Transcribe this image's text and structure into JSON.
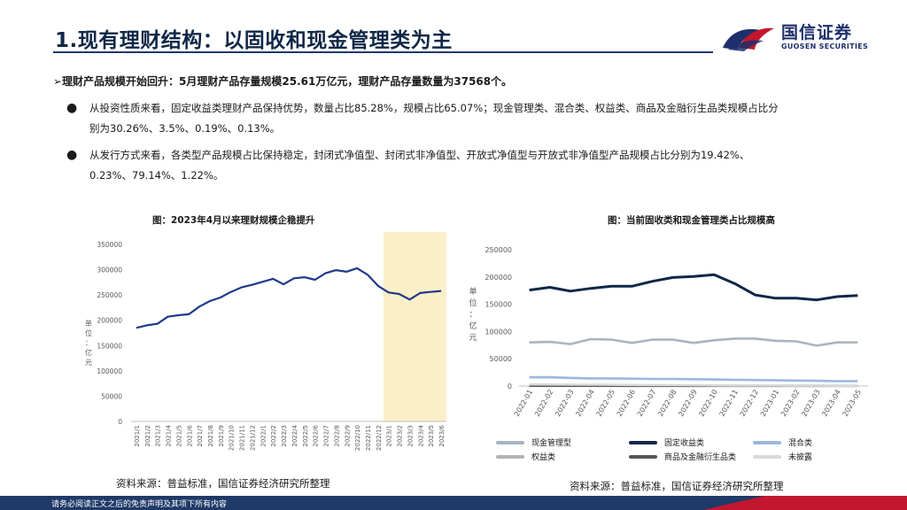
{
  "slide": {
    "title": "1.现有理财结构：以固收和现金管理类为主",
    "logo_cn": "国信证券",
    "logo_en": "GUOSEN SECURITIES",
    "headline": "➢理财产品规模开始回升：5月理财产品存量规模25.61万亿元，理财产品存量数量为37568个。",
    "bullets": [
      {
        "mark": "●",
        "line1": "从投资性质来看，固定收益类理财产品保持优势，数量占比85.28%，规模占比65.07%；现金管理类、混合类、权益类、商品及金融衍生品类规模占比分",
        "line2": "别为30.26%、3.5%、0.19%、0.13%。"
      },
      {
        "mark": "●",
        "line1": "从发行方式来看，各类型产品规模占比保持稳定，封闭式净值型、封闭式非净值型、开放式净值型与开放式非净值型产品规模占比分别为19.42%、",
        "line2": "0.23%、79.14%、1.22%。"
      }
    ],
    "footer": "请务必阅读正文之后的免责声明及其项下所有内容",
    "colors": {
      "navy": "#1f3a68",
      "red": "#c3172f",
      "highlight": "#fbefc8"
    }
  },
  "left_chart": {
    "title": "图：2023年4月以来理财规模企稳提升",
    "source": "资料来源：普益标准，国信证券经济研究所整理",
    "ylabel": "单位：亿元"
  },
  "right_chart": {
    "title": "图：当前固收类和现金管理类占比规模高",
    "source": "资料来源：普益标准，国信证券经济研究所整理",
    "ylabel": "单位：亿元",
    "legend": [
      {
        "name": "现金管理型",
        "color": "#a9b4c2"
      },
      {
        "name": "固定收益类",
        "color": "#0f2747"
      },
      {
        "name": "混合类",
        "color": "#9bb7e0"
      },
      {
        "name": "权益类",
        "color": "#b3b3b3"
      },
      {
        "name": "商品及金融衍生品类",
        "color": "#555555"
      },
      {
        "name": "未披露",
        "color": "#d9d9d9"
      }
    ]
  },
  "chart_data": [
    {
      "type": "line",
      "ylim": [
        0,
        350000
      ],
      "yticks": [
        "0",
        "50000",
        "100000",
        "150000",
        "200000",
        "250000",
        "300000",
        "350000"
      ],
      "x": [
        "2021/1",
        "2021/2",
        "2021/3",
        "2021/4",
        "2021/5",
        "2021/6",
        "2021/7",
        "2021/8",
        "2021/9",
        "2021/10",
        "2021/11",
        "2021/12",
        "2022/1",
        "2022/2",
        "2022/3",
        "2022/4",
        "2022/5",
        "2022/6",
        "2022/7",
        "2022/8",
        "2022/9",
        "2022/10",
        "2022/11",
        "2022/12",
        "2023/1",
        "2023/2",
        "2023/3",
        "2023/4",
        "2023/5",
        "2023/6"
      ],
      "highlight_range": [
        "2023/1",
        "2023/6"
      ],
      "series": [
        {
          "color": "#1f3a8a",
          "values": [
            185000,
            190000,
            193000,
            207000,
            210000,
            212000,
            227000,
            238000,
            245000,
            256000,
            265000,
            270000,
            276000,
            282000,
            271000,
            283000,
            285000,
            280000,
            293000,
            299000,
            296000,
            303000,
            290000,
            268000,
            255000,
            252000,
            241000,
            254000,
            256000,
            258000
          ]
        }
      ]
    },
    {
      "type": "line",
      "ylim": [
        0,
        250000
      ],
      "yticks": [
        "0",
        "50000",
        "100000",
        "150000",
        "200000",
        "250000"
      ],
      "x": [
        "2022-01",
        "2022-02",
        "2022-03",
        "2022-04",
        "2022-05",
        "2022-06",
        "2022-07",
        "2022-08",
        "2022-09",
        "2022-10",
        "2022-11",
        "2022-12",
        "2023-01",
        "2023-02",
        "2023-03",
        "2023-04",
        "2023-05"
      ],
      "series": [
        {
          "name": "现金管理型",
          "color": "#a9b4c2",
          "values": [
            80000,
            81000,
            77000,
            86000,
            85000,
            79000,
            85000,
            85000,
            79000,
            84000,
            87000,
            87000,
            83000,
            82000,
            74000,
            80000,
            80000
          ]
        },
        {
          "name": "固定收益类",
          "color": "#0f2747",
          "values": [
            176000,
            181000,
            174000,
            179000,
            183000,
            183000,
            192000,
            199000,
            201000,
            204000,
            188000,
            167000,
            161000,
            161000,
            158000,
            164000,
            166000
          ]
        },
        {
          "name": "混合类",
          "color": "#9bb7e0",
          "values": [
            16000,
            16000,
            15000,
            14000,
            14000,
            13500,
            13000,
            13000,
            12500,
            12000,
            11500,
            11000,
            10500,
            10000,
            9500,
            9000,
            9000
          ]
        },
        {
          "name": "权益类",
          "color": "#b3b3b3",
          "values": [
            1200,
            1200,
            1100,
            1100,
            1000,
            1000,
            1000,
            900,
            900,
            800,
            800,
            700,
            700,
            600,
            600,
            500,
            500
          ]
        },
        {
          "name": "商品及金融衍生品类",
          "color": "#555555",
          "values": [
            500,
            500,
            500,
            450,
            450,
            400,
            400,
            400,
            380,
            380,
            350,
            350,
            340,
            330,
            330,
            330,
            330
          ]
        },
        {
          "name": "未披露",
          "color": "#d9d9d9",
          "values": [
            3000,
            2800,
            2600,
            2400,
            2200,
            2000,
            1800,
            1600,
            1400,
            1200,
            1000,
            900,
            800,
            700,
            600,
            500,
            400
          ]
        }
      ]
    }
  ]
}
